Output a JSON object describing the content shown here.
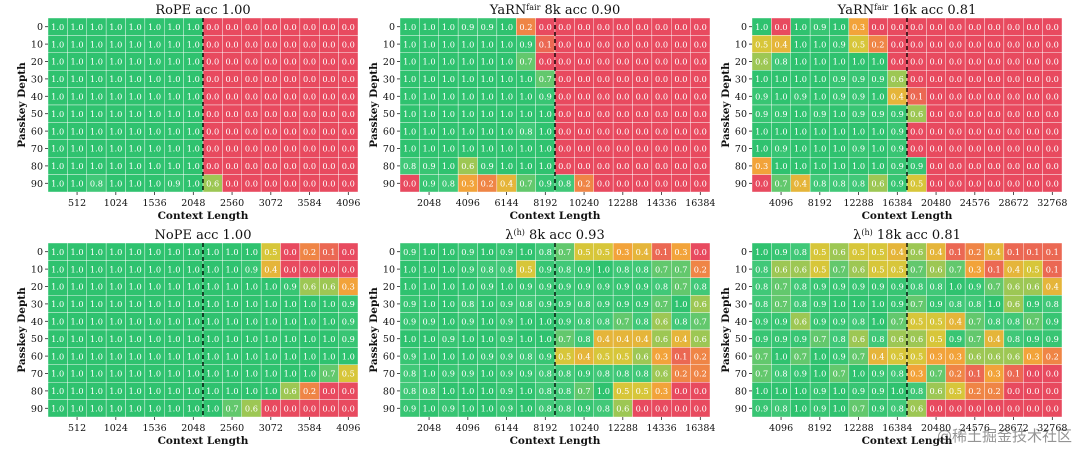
{
  "watermark": "@稀土掘金技术社区",
  "colors": {
    "grid_line": "#ffffff",
    "boundary_line": "#000000",
    "scale": [
      "#e84a5f",
      "#f2a33a",
      "#d7c63a",
      "#46c97a",
      "#2fc26f"
    ]
  },
  "chart_data": [
    {
      "id": "rope",
      "type": "heatmap",
      "title": "RoPE acc 1.00",
      "title_sup": "",
      "xlabel": "Context Length",
      "ylabel": "Passkey Depth",
      "y_ticks": [
        "0",
        "10",
        "20",
        "30",
        "40",
        "50",
        "60",
        "70",
        "80",
        "90"
      ],
      "x_ticks": [
        "512",
        "1024",
        "1536",
        "2048",
        "2560",
        "3072",
        "3584",
        "4096"
      ],
      "n_cols": 16,
      "boundary_col": 8,
      "grid": [
        [
          1,
          1,
          1,
          1,
          1,
          1,
          1,
          1,
          0,
          0,
          0,
          0,
          0,
          0,
          0,
          0
        ],
        [
          1,
          1,
          1,
          1,
          1,
          1,
          1,
          1,
          0,
          0,
          0,
          0,
          0,
          0,
          0,
          0
        ],
        [
          1,
          1,
          1,
          1,
          1,
          1,
          1,
          1,
          0,
          0,
          0,
          0,
          0,
          0,
          0,
          0
        ],
        [
          1,
          1,
          1,
          1,
          1,
          1,
          1,
          1,
          0,
          0,
          0,
          0,
          0,
          0,
          0,
          0
        ],
        [
          1,
          1,
          1,
          1,
          1,
          1,
          1,
          1,
          0,
          0,
          0,
          0,
          0,
          0,
          0,
          0
        ],
        [
          1,
          1,
          1,
          1,
          1,
          1,
          1,
          1,
          0,
          0,
          0,
          0,
          0,
          0,
          0,
          0
        ],
        [
          1,
          1,
          1,
          1,
          1,
          1,
          1,
          1,
          0,
          0,
          0,
          0,
          0,
          0,
          0,
          0
        ],
        [
          1,
          1,
          1,
          1,
          1,
          1,
          1,
          1,
          0,
          0,
          0,
          0,
          0,
          0,
          0,
          0
        ],
        [
          1,
          1,
          1,
          1,
          1,
          1,
          1,
          1,
          0,
          0,
          0,
          0,
          0,
          0,
          0,
          0
        ],
        [
          1,
          1,
          0.8,
          1,
          1,
          1,
          0.9,
          1,
          0.6,
          0,
          0,
          0,
          0,
          0,
          0,
          0
        ]
      ]
    },
    {
      "id": "yarn8k",
      "type": "heatmap",
      "title": "YaRN",
      "title_sup": "fair",
      "title_rest": " 8k acc 0.90",
      "xlabel": "Context Length",
      "ylabel": "Passkey Depth",
      "y_ticks": [
        "0",
        "10",
        "20",
        "30",
        "40",
        "50",
        "60",
        "70",
        "80",
        "90"
      ],
      "x_ticks": [
        "2048",
        "4096",
        "6144",
        "8192",
        "10240",
        "12288",
        "14336",
        "16384"
      ],
      "n_cols": 16,
      "boundary_col": 8,
      "grid": [
        [
          1,
          1,
          1,
          0.9,
          0.9,
          1,
          0.2,
          0,
          0,
          0,
          0,
          0,
          0,
          0,
          0,
          0
        ],
        [
          1,
          1,
          1,
          1,
          1,
          1,
          0.9,
          0.1,
          0,
          0,
          0,
          0,
          0,
          0,
          0,
          0
        ],
        [
          1,
          1,
          1,
          1,
          1,
          1,
          0.7,
          0,
          0,
          0,
          0,
          0,
          0,
          0,
          0,
          0
        ],
        [
          1,
          1,
          1,
          1,
          1,
          1,
          1,
          0.7,
          0,
          0,
          0,
          0,
          0,
          0,
          0,
          0
        ],
        [
          1,
          1,
          1,
          1,
          1,
          1,
          1,
          0.9,
          0,
          0,
          0,
          0,
          0,
          0,
          0,
          0
        ],
        [
          1,
          1,
          1,
          1,
          1,
          1,
          1,
          1,
          0,
          0,
          0,
          0,
          0,
          0,
          0,
          0
        ],
        [
          1,
          1,
          1,
          1,
          1,
          1,
          0.8,
          1,
          0,
          0,
          0,
          0,
          0,
          0,
          0,
          0
        ],
        [
          1,
          1,
          1,
          1,
          1,
          1,
          1,
          1,
          0,
          0,
          0,
          0,
          0,
          0,
          0,
          0
        ],
        [
          0.8,
          0.9,
          1,
          0.6,
          0.9,
          1,
          1,
          1,
          0,
          0,
          0,
          0,
          0,
          0,
          0,
          0
        ],
        [
          0,
          0.9,
          0.8,
          0.3,
          0.2,
          0.4,
          0.7,
          0.9,
          0.8,
          0.2,
          0,
          0,
          0,
          0,
          0,
          0
        ]
      ]
    },
    {
      "id": "yarn16k",
      "type": "heatmap",
      "title": "YaRN",
      "title_sup": "fair",
      "title_rest": " 16k acc 0.81",
      "xlabel": "Context Length",
      "ylabel": "Passkey Depth",
      "y_ticks": [
        "0",
        "10",
        "20",
        "30",
        "40",
        "50",
        "60",
        "70",
        "80",
        "90"
      ],
      "x_ticks": [
        "4096",
        "8192",
        "12288",
        "16384",
        "20480",
        "24576",
        "28672",
        "32768"
      ],
      "n_cols": 16,
      "boundary_col": 8,
      "grid": [
        [
          1,
          0,
          1,
          0.9,
          1,
          0.3,
          0,
          0,
          0,
          0,
          0,
          0,
          0,
          0,
          0,
          0
        ],
        [
          0.5,
          0.4,
          1,
          1,
          0.9,
          0.5,
          0.2,
          0,
          0,
          0,
          0,
          0,
          0,
          0,
          0,
          0
        ],
        [
          0.6,
          0.8,
          1,
          1,
          1,
          1,
          1,
          0,
          0,
          0,
          0,
          0,
          0,
          0,
          0,
          0
        ],
        [
          1,
          1,
          1,
          1,
          0.9,
          0.9,
          0.9,
          0.6,
          0,
          0,
          0,
          0,
          0,
          0,
          0,
          0
        ],
        [
          0.9,
          1,
          0.9,
          1,
          0.9,
          0.9,
          1,
          0.4,
          0.1,
          0,
          0,
          0,
          0,
          0,
          0,
          0
        ],
        [
          0.9,
          0.9,
          1,
          0.9,
          1,
          0.9,
          0.9,
          0.9,
          0.6,
          0,
          0,
          0,
          0,
          0,
          0,
          0
        ],
        [
          1,
          1,
          1,
          1,
          1,
          1,
          1,
          0.9,
          0,
          0,
          0,
          0,
          0,
          0,
          0,
          0
        ],
        [
          1,
          0.9,
          1,
          1,
          1,
          0.9,
          1,
          0.9,
          0,
          0,
          0,
          0,
          0,
          0,
          0,
          0
        ],
        [
          0.3,
          1,
          1,
          1,
          1,
          1,
          1,
          0.9,
          0.9,
          0,
          0,
          0,
          0,
          0,
          0,
          0
        ],
        [
          0,
          0.7,
          0.4,
          0.8,
          0.8,
          0.8,
          0.6,
          0.9,
          0.5,
          0,
          0,
          0,
          0,
          0,
          0,
          0
        ]
      ]
    },
    {
      "id": "nope",
      "type": "heatmap",
      "title": "NoPE acc 1.00",
      "title_sup": "",
      "xlabel": "Context Length",
      "ylabel": "Passkey Depth",
      "y_ticks": [
        "0",
        "10",
        "20",
        "30",
        "40",
        "50",
        "60",
        "70",
        "80",
        "90"
      ],
      "x_ticks": [
        "512",
        "1024",
        "1536",
        "2048",
        "2560",
        "3072",
        "3584",
        "4096"
      ],
      "n_cols": 16,
      "boundary_col": 8,
      "grid": [
        [
          1,
          1,
          1,
          1,
          1,
          1,
          1,
          1,
          1,
          1,
          1,
          0.5,
          0,
          0.2,
          0.1,
          0
        ],
        [
          1,
          1,
          1,
          1,
          1,
          1,
          1,
          1,
          1,
          1,
          0.9,
          0.4,
          0,
          0,
          0,
          0
        ],
        [
          1,
          1,
          1,
          1,
          1,
          1,
          1,
          1,
          1,
          1,
          1,
          1,
          0.9,
          0.6,
          0.6,
          0.3
        ],
        [
          1,
          1,
          1,
          1,
          1,
          1,
          1,
          1,
          1,
          1,
          1,
          1,
          1,
          1,
          1,
          0.9
        ],
        [
          1,
          1,
          1,
          1,
          1,
          1,
          1,
          1,
          1,
          1,
          1,
          1,
          1,
          1,
          1,
          0.9
        ],
        [
          1,
          1,
          1,
          1,
          1,
          1,
          1,
          1,
          1,
          1,
          1,
          1,
          1,
          1,
          1,
          0.9
        ],
        [
          1,
          1,
          1,
          1,
          1,
          1,
          1,
          1,
          1,
          1,
          1,
          1,
          1,
          1,
          1,
          1
        ],
        [
          1,
          1,
          1,
          1,
          1,
          1,
          1,
          1,
          1,
          1,
          1,
          1,
          1,
          1,
          0.7,
          0.5
        ],
        [
          1,
          1,
          1,
          1,
          1,
          1,
          1,
          1,
          1,
          1,
          1,
          1,
          0.6,
          0.2,
          0,
          0
        ],
        [
          1,
          1,
          1,
          1,
          1,
          1,
          1,
          1,
          1,
          0.7,
          0.6,
          0,
          0,
          0,
          0,
          0
        ]
      ]
    },
    {
      "id": "lambda8k",
      "type": "heatmap",
      "title": "λ",
      "title_sup": "(h)",
      "title_rest": " 8k acc 0.93",
      "xlabel": "Context Length",
      "ylabel": "Passkey Depth",
      "y_ticks": [
        "0",
        "10",
        "20",
        "30",
        "40",
        "50",
        "60",
        "70",
        "80",
        "90"
      ],
      "x_ticks": [
        "2048",
        "4096",
        "6144",
        "8192",
        "10240",
        "12288",
        "14336",
        "16384"
      ],
      "n_cols": 16,
      "boundary_col": 8,
      "grid": [
        [
          0.9,
          1,
          1,
          0.9,
          1,
          0.9,
          1,
          0.8,
          0.7,
          0.5,
          0.5,
          0.3,
          0.4,
          0.1,
          0.3,
          0
        ],
        [
          1,
          1,
          1,
          0.9,
          0.8,
          0.8,
          0.5,
          0.9,
          0.8,
          0.9,
          1,
          0.8,
          0.8,
          0.7,
          0.7,
          0.2
        ],
        [
          1,
          1,
          1,
          1,
          0.9,
          1,
          0.9,
          0.9,
          0.9,
          0.9,
          0.9,
          0.9,
          0.9,
          0.8,
          0.7,
          0.8
        ],
        [
          0.9,
          1,
          1,
          0.8,
          1,
          0.9,
          0.8,
          0.9,
          0.9,
          0.8,
          0.9,
          0.9,
          0.9,
          0.7,
          1,
          0.6
        ],
        [
          0.9,
          0.9,
          1,
          0.9,
          1,
          0.9,
          1,
          1,
          0.9,
          0.8,
          0.8,
          0.7,
          0.8,
          0.6,
          0.8,
          0.7
        ],
        [
          1,
          1,
          0.9,
          1,
          1,
          0.9,
          1,
          1,
          0.7,
          0.8,
          0.4,
          0.4,
          0.4,
          0.6,
          0.4,
          0.6
        ],
        [
          0.9,
          1,
          1,
          1,
          0.9,
          0.9,
          0.8,
          0.9,
          0.5,
          0.4,
          0.5,
          0.5,
          0.6,
          0.3,
          0.1,
          0.2
        ],
        [
          0.8,
          1,
          0.9,
          0.9,
          1,
          0.9,
          0.9,
          0.8,
          0.8,
          0.9,
          0.8,
          0.8,
          0.8,
          0.6,
          0.2,
          0.2
        ],
        [
          0.8,
          0.8,
          1,
          1,
          1,
          0.9,
          1,
          0.8,
          0.8,
          0.7,
          1,
          0.5,
          0.5,
          0.3,
          0,
          0
        ],
        [
          0.9,
          1,
          0.9,
          1,
          1,
          0.9,
          1,
          0.8,
          0.8,
          0.9,
          0.8,
          0.6,
          0,
          0,
          0,
          0
        ]
      ]
    },
    {
      "id": "lambda16k",
      "type": "heatmap",
      "title": "λ",
      "title_sup": "(h)",
      "title_rest": " 18k acc 0.81",
      "xlabel": "Context Length",
      "ylabel": "Passkey Depth",
      "y_ticks": [
        "0",
        "10",
        "20",
        "30",
        "40",
        "50",
        "60",
        "70",
        "80",
        "90"
      ],
      "x_ticks": [
        "4096",
        "8192",
        "12288",
        "16384",
        "20480",
        "24576",
        "28672",
        "32768"
      ],
      "n_cols": 16,
      "boundary_col": 8,
      "grid": [
        [
          1,
          0.9,
          0.8,
          0.5,
          0.6,
          0.5,
          0.5,
          0.4,
          0.6,
          0.4,
          0.1,
          0.2,
          0.4,
          0.1,
          0.1,
          0.1
        ],
        [
          0.8,
          0.6,
          0.6,
          0.5,
          0.7,
          0.6,
          0.5,
          0.5,
          0.7,
          0.6,
          0.7,
          0.3,
          0.1,
          0.4,
          0.5,
          0.1
        ],
        [
          0.8,
          0.7,
          0.8,
          0.9,
          0.9,
          0.9,
          0.9,
          0.9,
          0.8,
          0.8,
          1,
          0.9,
          0.7,
          0.6,
          0.6,
          0.4
        ],
        [
          0.8,
          0.7,
          0.8,
          0.9,
          1,
          1,
          1,
          0.9,
          0.7,
          0.9,
          0.8,
          0.8,
          1,
          0.6,
          0.9,
          0.8
        ],
        [
          0.9,
          0.9,
          0.6,
          0.9,
          0.9,
          0.8,
          1,
          0.7,
          0.5,
          0.5,
          0.4,
          0.7,
          0.8,
          0.8,
          0.7,
          0.9
        ],
        [
          0.9,
          0.9,
          0.9,
          0.7,
          0.8,
          0.6,
          0.8,
          0.6,
          0.6,
          0.5,
          0.9,
          0.7,
          0.4,
          0.8,
          0.9,
          0.9
        ],
        [
          0.7,
          1,
          0.7,
          1,
          0.9,
          0.7,
          0.4,
          0.5,
          0.5,
          0.3,
          0.3,
          0.6,
          0.6,
          0.6,
          0.3,
          0.2
        ],
        [
          0.7,
          0.8,
          0.9,
          1,
          0.7,
          1,
          0.9,
          0.8,
          0.3,
          0.7,
          0.2,
          0.1,
          0.3,
          0.1,
          0,
          0
        ],
        [
          1,
          1,
          1,
          0.9,
          1,
          0.9,
          0.9,
          1,
          0.8,
          0.6,
          0.5,
          0.2,
          0.2,
          0,
          0,
          0
        ],
        [
          0.9,
          0.8,
          1,
          0.9,
          1,
          0.7,
          0.9,
          0.8,
          0.6,
          0,
          0,
          0,
          0,
          0,
          0,
          0
        ]
      ]
    }
  ]
}
